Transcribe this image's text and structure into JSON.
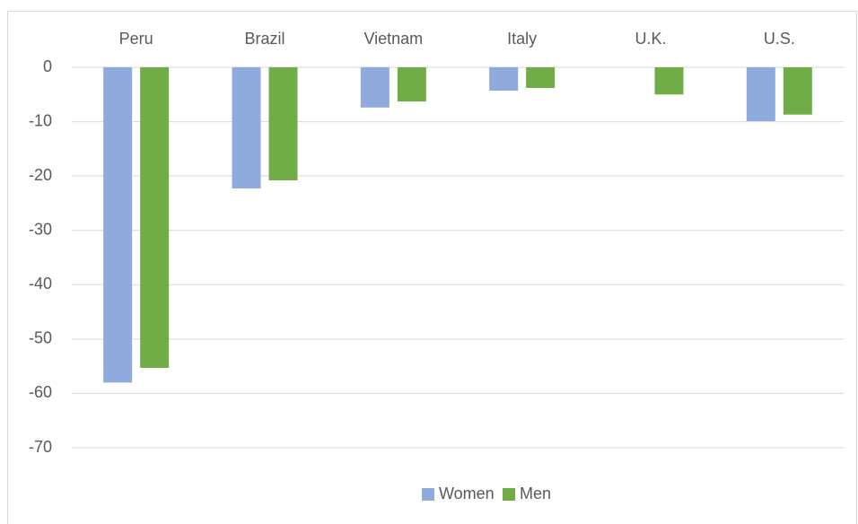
{
  "chart_data": {
    "type": "bar",
    "categories": [
      "Peru",
      "Brazil",
      "Vietnam",
      "Italy",
      "U.K.",
      "U.S."
    ],
    "series": [
      {
        "name": "Women",
        "color": "#8faadc",
        "values": [
          -58,
          -22.3,
          -7.4,
          -4.3,
          null,
          -9.9
        ]
      },
      {
        "name": "Men",
        "color": "#70ad47",
        "values": [
          -55.3,
          -20.8,
          -6.3,
          -3.8,
          -5,
          -8.7
        ]
      }
    ],
    "ylim": [
      -70,
      0
    ],
    "yticks": [
      0,
      -10,
      -20,
      -30,
      -40,
      -50,
      -60,
      -70
    ],
    "grid": true,
    "legend": "bottom"
  }
}
